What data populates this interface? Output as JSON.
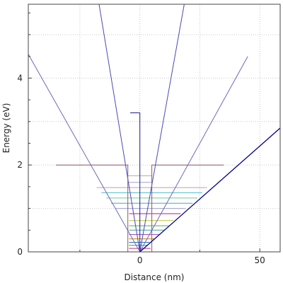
{
  "chart_data": {
    "type": "line",
    "title": "",
    "xlabel": "Distance (nm)",
    "ylabel": "Energy (eV)",
    "xlim": [
      -46.5,
      58.5
    ],
    "ylim": [
      0,
      5.7
    ],
    "x_major_ticks": [
      0,
      50
    ],
    "y_major_ticks": [
      0,
      2,
      4
    ],
    "x_tick_labels": [
      "0",
      "50"
    ],
    "y_tick_labels": [
      "0",
      "2",
      "4"
    ],
    "grid": true,
    "legend": "none",
    "colors": {
      "steep_cone": "#4a4ab8",
      "wide_cone": "#6a6ac0",
      "barrier": "#8a5a6a",
      "spike": "#1a1a9a",
      "dispersion": "#00008b",
      "grid": "#c8c8c8",
      "axis": "#444444"
    },
    "lines": [
      {
        "role": "steep_cone",
        "x": [
          -17,
          0,
          18.5
        ],
        "y": [
          5.7,
          0,
          5.7
        ]
      },
      {
        "role": "wide_cone",
        "x": [
          -46.5,
          0,
          45
        ],
        "y": [
          4.55,
          0,
          4.5
        ]
      },
      {
        "role": "barrier",
        "x": [
          -35,
          -5,
          -5,
          5,
          5,
          35
        ],
        "y": [
          2,
          2,
          0,
          0,
          2,
          2
        ]
      },
      {
        "role": "spike",
        "x": [
          -4,
          0,
          0
        ],
        "y": [
          3.2,
          3.2,
          0
        ]
      },
      {
        "role": "dispersion",
        "x": [
          0,
          58.5
        ],
        "y": [
          0,
          2.85
        ]
      }
    ],
    "levels": [
      {
        "energy": 0.08,
        "x": [
          -4.5,
          4.5
        ],
        "color": "#c03070"
      },
      {
        "energy": 0.15,
        "x": [
          -4.5,
          3
        ],
        "color": "#30a050"
      },
      {
        "energy": 0.22,
        "x": [
          -4.5,
          4
        ],
        "color": "#2070c0"
      },
      {
        "energy": 0.3,
        "x": [
          -4.5,
          6
        ],
        "color": "#d08000"
      },
      {
        "energy": 0.4,
        "x": [
          -4.5,
          8
        ],
        "color": "#a050c0"
      },
      {
        "energy": 0.5,
        "x": [
          -4.5,
          10
        ],
        "color": "#40a0a0"
      },
      {
        "energy": 0.6,
        "x": [
          -4.5,
          12
        ],
        "color": "#50b050"
      },
      {
        "energy": 0.72,
        "x": [
          -4.5,
          14
        ],
        "color": "#c0c030"
      },
      {
        "energy": 0.88,
        "x": [
          -4.5,
          17
        ],
        "color": "#b02080"
      },
      {
        "energy": 1.0,
        "x": [
          -10,
          19
        ],
        "color": "#a0a0d0"
      },
      {
        "energy": 1.12,
        "x": [
          -12,
          22
        ],
        "color": "#40b0b0"
      },
      {
        "energy": 1.24,
        "x": [
          -14,
          24
        ],
        "color": "#80c0a0"
      },
      {
        "energy": 1.36,
        "x": [
          -16,
          26
        ],
        "color": "#50c0d0"
      },
      {
        "energy": 1.48,
        "x": [
          -18,
          28
        ],
        "color": "#c0a0a0"
      },
      {
        "energy": 1.6,
        "x": [
          -5,
          5
        ],
        "color": "#a0a0d0"
      },
      {
        "energy": 1.75,
        "x": [
          -5,
          5
        ],
        "color": "#b0b0b0"
      }
    ]
  }
}
